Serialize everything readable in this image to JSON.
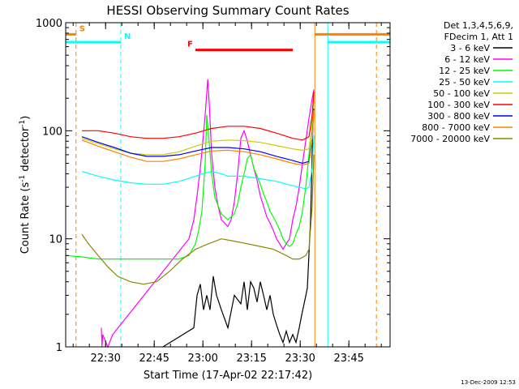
{
  "chart_data": {
    "type": "line",
    "title": "HESSI Observing Summary Count Rates",
    "xlabel": "Start Time (17-Apr-02 22:17:42)",
    "ylabel_parts": [
      "Count Rate (s",
      "-1",
      " detector",
      "-1",
      ")"
    ],
    "yscale": "log",
    "ylim": [
      1,
      1000
    ],
    "xlim_minutes": [
      0,
      100
    ],
    "x_ticks": [
      {
        "label": "22:30",
        "t": 12.3
      },
      {
        "label": "22:45",
        "t": 27.3
      },
      {
        "label": "23:00",
        "t": 42.3
      },
      {
        "label": "23:15",
        "t": 57.3
      },
      {
        "label": "23:30",
        "t": 72.3
      },
      {
        "label": "23:45",
        "t": 87.3
      }
    ],
    "y_ticks": [
      {
        "label": "1",
        "v": 1
      },
      {
        "label": "10",
        "v": 10
      },
      {
        "label": "100",
        "v": 100
      },
      {
        "label": "1000",
        "v": 1000
      }
    ],
    "legend_header": [
      "Det 1,3,4,5,6,9,",
      "FDecim 1, Att 1"
    ],
    "timestamp": "13-Dec-2009 12:53",
    "flags": [
      {
        "label": "S",
        "color": "#ff8000",
        "level": 780,
        "segments": [
          [
            0,
            3.2
          ],
          [
            76.8,
            100
          ]
        ]
      },
      {
        "label": "N",
        "color": "#00ffff",
        "level": 660,
        "segments": [
          [
            0,
            17
          ],
          [
            80.8,
            100
          ]
        ]
      },
      {
        "label": "F",
        "color": "#ff0000",
        "level": 560,
        "segments": [
          [
            40,
            70
          ]
        ]
      }
    ],
    "vlines": [
      {
        "t": 3.2,
        "color": "#ff8000",
        "dash": true
      },
      {
        "t": 17,
        "color": "#00ffff",
        "dash": true
      },
      {
        "t": 76.8,
        "color": "#ff8000",
        "dash": false
      },
      {
        "t": 80.8,
        "color": "#00ffff",
        "dash": false
      },
      {
        "t": 95.8,
        "color": "#ff8000",
        "dash": true
      }
    ],
    "series": [
      {
        "name": "3 - 6 keV",
        "color": "#000000",
        "x": [
          30,
          39.5,
          40.5,
          41.5,
          42.5,
          43.5,
          44.5,
          45.5,
          46.5,
          48,
          50,
          52,
          54,
          55,
          56,
          57,
          58,
          59,
          60,
          61,
          62,
          63,
          64,
          65,
          66,
          67,
          68,
          69,
          70,
          71,
          72,
          72.8,
          73.5,
          74.5,
          75.5,
          76.3
        ],
        "y": [
          1,
          1.5,
          3,
          3.8,
          2.2,
          3,
          2.2,
          4.5,
          3,
          2.2,
          1.5,
          3,
          2.5,
          4,
          2.2,
          4,
          3.5,
          2.6,
          4,
          3,
          2.2,
          3,
          2,
          1.6,
          1.3,
          1.1,
          1.4,
          1.1,
          1.3,
          1.1,
          1.5,
          2,
          2.5,
          3.5,
          15,
          150
        ]
      },
      {
        "name": "6 - 12 keV",
        "color": "#ff00ff",
        "x": [
          11,
          11.2,
          11.4,
          13,
          14.5,
          38,
          39.5,
          40.5,
          41.5,
          42,
          43,
          43.8,
          44.3,
          45,
          46,
          47,
          48,
          49,
          50,
          51,
          52,
          53,
          54,
          55,
          56,
          57,
          58,
          59,
          60,
          61,
          62,
          63,
          64,
          65,
          66,
          67,
          68,
          69,
          70,
          71,
          72,
          73,
          74,
          75,
          76,
          76.5
        ],
        "y": [
          1.5,
          1,
          1.3,
          1,
          1.3,
          10,
          15,
          25,
          45,
          65,
          140,
          300,
          170,
          60,
          30,
          20,
          15,
          14,
          13,
          15,
          22,
          40,
          85,
          100,
          80,
          60,
          45,
          35,
          25,
          20,
          16,
          14,
          12,
          10,
          9,
          8,
          9,
          10,
          15,
          20,
          30,
          50,
          80,
          130,
          200,
          240
        ]
      },
      {
        "name": "12 - 25 keV",
        "color": "#00ff00",
        "x": [
          0.2,
          5,
          10,
          15,
          20,
          25,
          30,
          35,
          38,
          40,
          41,
          42,
          43,
          43.5,
          44,
          45,
          46,
          48,
          50,
          52,
          53,
          54,
          55,
          56,
          57,
          58,
          59,
          60,
          61,
          62,
          63,
          64,
          65,
          66,
          67,
          68,
          69,
          70,
          71,
          72,
          73,
          74,
          75,
          76,
          76.5
        ],
        "y": [
          7,
          6.8,
          6.5,
          6.5,
          6.5,
          6.5,
          6.5,
          6.5,
          7,
          9,
          12,
          18,
          50,
          140,
          95,
          40,
          24,
          17,
          15,
          17,
          21,
          30,
          40,
          55,
          60,
          45,
          38,
          32,
          26,
          22,
          18,
          16,
          14,
          12,
          10,
          9,
          8.5,
          9,
          11,
          13,
          18,
          30,
          60,
          120,
          200
        ]
      },
      {
        "name": "25 - 50 keV",
        "color": "#00ffff",
        "x": [
          5,
          10,
          15,
          20,
          25,
          30,
          35,
          40,
          42,
          45,
          48,
          50,
          55,
          60,
          65,
          70,
          72,
          74,
          75,
          76,
          76.5
        ],
        "y": [
          42,
          38,
          35,
          33,
          32,
          32,
          34,
          38,
          40,
          42,
          40,
          38,
          38,
          36,
          34,
          31,
          30,
          29,
          30,
          45,
          90
        ]
      },
      {
        "name": "50 - 100 keV",
        "color": "#cccc00",
        "x": [
          5,
          10,
          15,
          20,
          25,
          30,
          35,
          40,
          45,
          50,
          55,
          60,
          65,
          70,
          73,
          75,
          76,
          76.5
        ],
        "y": [
          85,
          76,
          68,
          62,
          60,
          60,
          64,
          72,
          80,
          82,
          81,
          78,
          73,
          68,
          66,
          68,
          110,
          200
        ]
      },
      {
        "name": "100 - 300 keV",
        "color": "#ff0000",
        "x": [
          5,
          10,
          15,
          20,
          25,
          30,
          35,
          40,
          45,
          50,
          55,
          60,
          65,
          70,
          73,
          75,
          76,
          76.5
        ],
        "y": [
          100,
          100,
          95,
          88,
          85,
          85,
          88,
          95,
          105,
          110,
          110,
          105,
          95,
          85,
          82,
          88,
          140,
          230
        ]
      },
      {
        "name": "300 - 800 keV",
        "color": "#0000ff",
        "x": [
          5,
          10,
          15,
          20,
          25,
          30,
          35,
          40,
          45,
          50,
          55,
          60,
          65,
          70,
          73,
          75,
          76,
          76.5
        ],
        "y": [
          88,
          78,
          70,
          62,
          58,
          58,
          60,
          65,
          70,
          70,
          68,
          64,
          58,
          53,
          50,
          52,
          85,
          160
        ]
      },
      {
        "name": "800 - 7000 keV",
        "color": "#ff8000",
        "x": [
          5,
          10,
          15,
          20,
          25,
          30,
          35,
          40,
          45,
          50,
          55,
          60,
          65,
          70,
          73,
          75,
          76,
          76.5
        ],
        "y": [
          82,
          72,
          64,
          57,
          52,
          52,
          55,
          60,
          65,
          66,
          64,
          60,
          55,
          50,
          48,
          50,
          82,
          155
        ]
      },
      {
        "name": "7000 - 20000 keV",
        "color": "#888800",
        "x": [
          5,
          7,
          10,
          13,
          16,
          20,
          24,
          28,
          32,
          36,
          40,
          44,
          48,
          52,
          56,
          60,
          64,
          66,
          68,
          70,
          72,
          74,
          75,
          76,
          76.5
        ],
        "y": [
          11,
          9,
          7,
          5.5,
          4.5,
          4,
          3.8,
          4,
          5,
          6.5,
          8,
          9,
          10,
          9.5,
          9,
          8.5,
          8,
          7.5,
          7,
          6.5,
          6.5,
          7,
          8,
          20,
          60
        ]
      }
    ]
  }
}
